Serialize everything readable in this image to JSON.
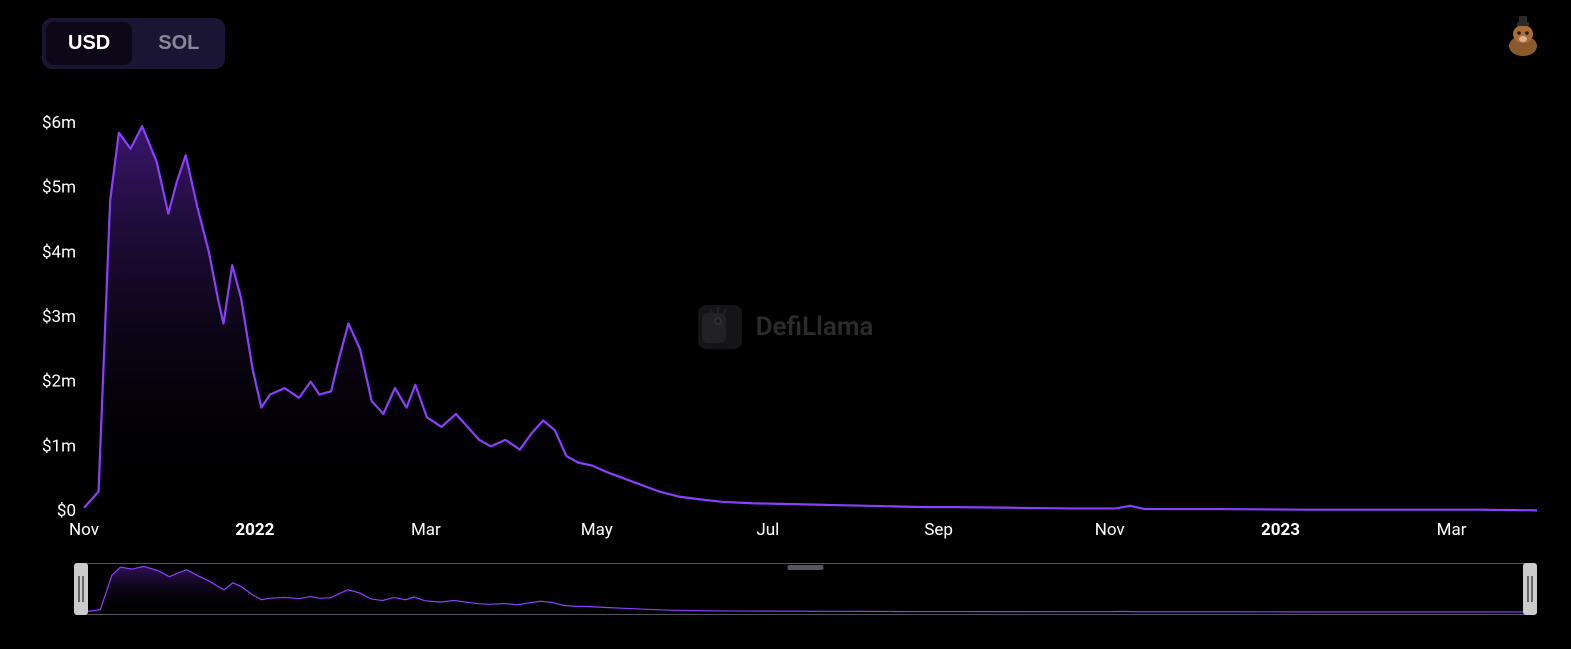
{
  "toggle": {
    "options": [
      "USD",
      "SOL"
    ],
    "active": "USD"
  },
  "watermark": {
    "text": "DefiLlama"
  },
  "chart": {
    "type": "area",
    "line_color": "#8a3ffc",
    "fill_top_color": "#6929c4",
    "fill_top_opacity": 0.55,
    "fill_bottom_color": "#000000",
    "fill_bottom_opacity": 0,
    "line_width": 2.2,
    "background_color": "#000000",
    "text_color": "#ffffff",
    "font_size_axis": 17,
    "y_axis": {
      "min": 0,
      "max": 6,
      "unit_suffix": "m",
      "unit_prefix": "$",
      "ticks": [
        0,
        1,
        2,
        3,
        4,
        5,
        6
      ]
    },
    "x_axis": {
      "ticks": [
        {
          "pos": 0.0,
          "label": "Nov",
          "bold": false
        },
        {
          "pos": 0.1176,
          "label": "2022",
          "bold": true
        },
        {
          "pos": 0.2353,
          "label": "Mar",
          "bold": false
        },
        {
          "pos": 0.3529,
          "label": "May",
          "bold": false
        },
        {
          "pos": 0.4706,
          "label": "Jul",
          "bold": false
        },
        {
          "pos": 0.5882,
          "label": "Sep",
          "bold": false
        },
        {
          "pos": 0.7059,
          "label": "Nov",
          "bold": false
        },
        {
          "pos": 0.8235,
          "label": "2023",
          "bold": true
        },
        {
          "pos": 0.9412,
          "label": "Mar",
          "bold": false
        }
      ]
    },
    "series": [
      {
        "x": 0.0,
        "y": 0.05
      },
      {
        "x": 0.01,
        "y": 0.3
      },
      {
        "x": 0.018,
        "y": 4.8
      },
      {
        "x": 0.024,
        "y": 5.85
      },
      {
        "x": 0.032,
        "y": 5.6
      },
      {
        "x": 0.04,
        "y": 5.95
      },
      {
        "x": 0.05,
        "y": 5.4
      },
      {
        "x": 0.058,
        "y": 4.6
      },
      {
        "x": 0.064,
        "y": 5.1
      },
      {
        "x": 0.07,
        "y": 5.5
      },
      {
        "x": 0.078,
        "y": 4.7
      },
      {
        "x": 0.086,
        "y": 4.0
      },
      {
        "x": 0.092,
        "y": 3.3
      },
      {
        "x": 0.096,
        "y": 2.9
      },
      {
        "x": 0.102,
        "y": 3.8
      },
      {
        "x": 0.108,
        "y": 3.3
      },
      {
        "x": 0.116,
        "y": 2.2
      },
      {
        "x": 0.122,
        "y": 1.6
      },
      {
        "x": 0.128,
        "y": 1.8
      },
      {
        "x": 0.138,
        "y": 1.9
      },
      {
        "x": 0.148,
        "y": 1.75
      },
      {
        "x": 0.156,
        "y": 2.0
      },
      {
        "x": 0.162,
        "y": 1.8
      },
      {
        "x": 0.17,
        "y": 1.85
      },
      {
        "x": 0.176,
        "y": 2.4
      },
      {
        "x": 0.182,
        "y": 2.9
      },
      {
        "x": 0.19,
        "y": 2.5
      },
      {
        "x": 0.198,
        "y": 1.7
      },
      {
        "x": 0.206,
        "y": 1.5
      },
      {
        "x": 0.214,
        "y": 1.9
      },
      {
        "x": 0.222,
        "y": 1.6
      },
      {
        "x": 0.228,
        "y": 1.95
      },
      {
        "x": 0.236,
        "y": 1.45
      },
      {
        "x": 0.246,
        "y": 1.3
      },
      {
        "x": 0.256,
        "y": 1.5
      },
      {
        "x": 0.264,
        "y": 1.3
      },
      {
        "x": 0.272,
        "y": 1.1
      },
      {
        "x": 0.28,
        "y": 1.0
      },
      {
        "x": 0.29,
        "y": 1.1
      },
      {
        "x": 0.3,
        "y": 0.95
      },
      {
        "x": 0.308,
        "y": 1.2
      },
      {
        "x": 0.316,
        "y": 1.4
      },
      {
        "x": 0.324,
        "y": 1.25
      },
      {
        "x": 0.332,
        "y": 0.85
      },
      {
        "x": 0.34,
        "y": 0.75
      },
      {
        "x": 0.35,
        "y": 0.7
      },
      {
        "x": 0.36,
        "y": 0.6
      },
      {
        "x": 0.372,
        "y": 0.5
      },
      {
        "x": 0.384,
        "y": 0.4
      },
      {
        "x": 0.396,
        "y": 0.3
      },
      {
        "x": 0.41,
        "y": 0.22
      },
      {
        "x": 0.424,
        "y": 0.18
      },
      {
        "x": 0.44,
        "y": 0.14
      },
      {
        "x": 0.46,
        "y": 0.12
      },
      {
        "x": 0.48,
        "y": 0.11
      },
      {
        "x": 0.5,
        "y": 0.1
      },
      {
        "x": 0.52,
        "y": 0.09
      },
      {
        "x": 0.54,
        "y": 0.08
      },
      {
        "x": 0.56,
        "y": 0.07
      },
      {
        "x": 0.58,
        "y": 0.06
      },
      {
        "x": 0.6,
        "y": 0.06
      },
      {
        "x": 0.64,
        "y": 0.05
      },
      {
        "x": 0.68,
        "y": 0.04
      },
      {
        "x": 0.71,
        "y": 0.04
      },
      {
        "x": 0.72,
        "y": 0.08
      },
      {
        "x": 0.73,
        "y": 0.03
      },
      {
        "x": 0.78,
        "y": 0.03
      },
      {
        "x": 0.84,
        "y": 0.02
      },
      {
        "x": 0.9,
        "y": 0.02
      },
      {
        "x": 0.96,
        "y": 0.02
      },
      {
        "x": 1.0,
        "y": 0.01
      }
    ]
  },
  "brush": {
    "border_color": "#555560",
    "fill_top_color": "#6929c4",
    "fill_top_opacity": 0.45,
    "line_color": "#8a3ffc",
    "handle_color": "#cccccc"
  }
}
